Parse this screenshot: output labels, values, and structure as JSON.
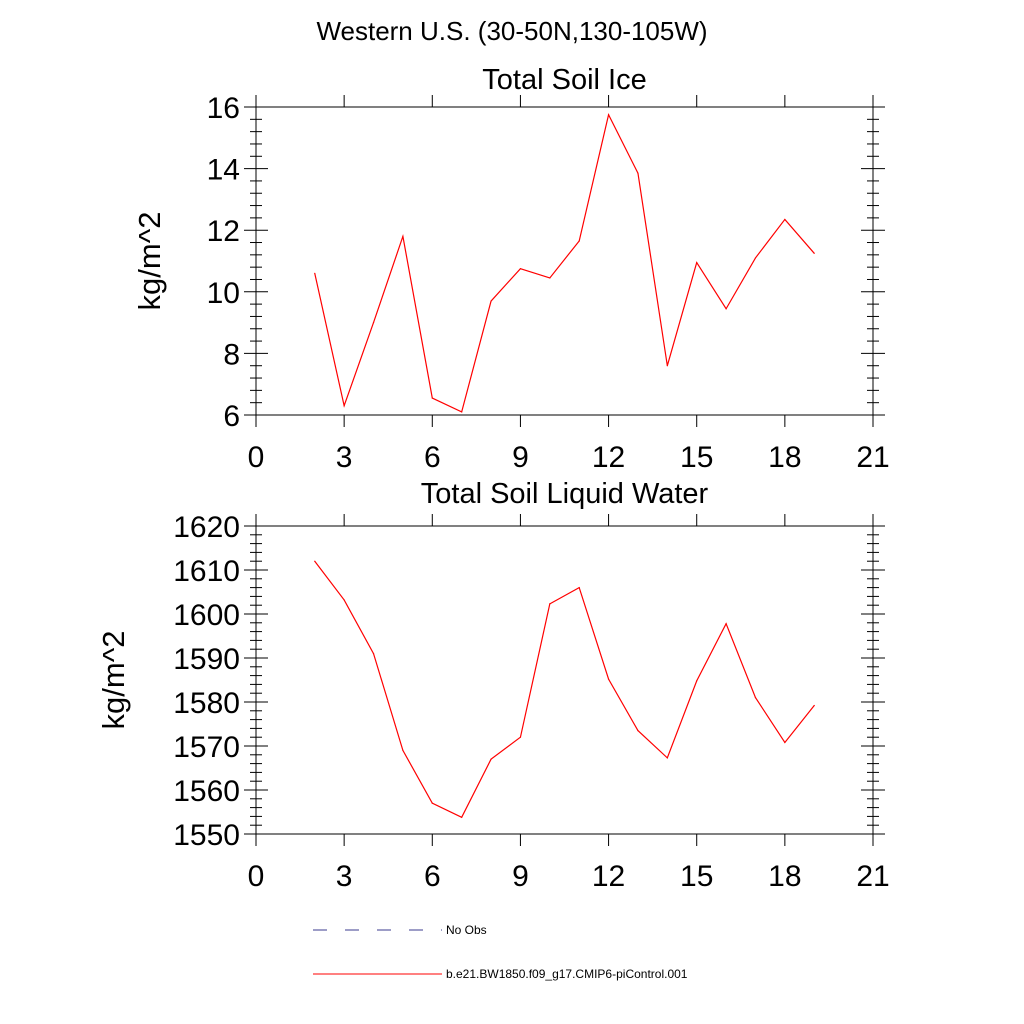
{
  "suptitle": "Western U.S. (30-50N,130-105W)",
  "colors": {
    "model": "#ff0000",
    "obs": "#3b3b8f",
    "axis": "#000000"
  },
  "chart_data": [
    {
      "type": "line",
      "title": "Total Soil Ice",
      "xlabel": "",
      "ylabel": "kg/m^2",
      "xlim": [
        0,
        21
      ],
      "ylim": [
        6,
        16
      ],
      "xticks": [
        0,
        3,
        6,
        9,
        12,
        15,
        18,
        21
      ],
      "yticks": [
        6,
        8,
        10,
        12,
        14,
        16
      ],
      "x": [
        2,
        3,
        4,
        5,
        6,
        7,
        8,
        9,
        10,
        11,
        12,
        13,
        14,
        15,
        16,
        17,
        18,
        19
      ],
      "series": [
        {
          "name": "b.e21.BW1850.f09_g17.CMIP6-piControl.001",
          "values": [
            10.6,
            6.3,
            9.0,
            11.8,
            6.55,
            6.1,
            9.7,
            10.75,
            10.45,
            11.65,
            15.75,
            13.85,
            7.6,
            10.95,
            9.45,
            11.1,
            12.35,
            11.25
          ]
        }
      ]
    },
    {
      "type": "line",
      "title": "Total Soil Liquid Water",
      "xlabel": "",
      "ylabel": "kg/m^2",
      "xlim": [
        0,
        21
      ],
      "ylim": [
        1550,
        1620
      ],
      "xticks": [
        0,
        3,
        6,
        9,
        12,
        15,
        18,
        21
      ],
      "yticks": [
        1550,
        1560,
        1570,
        1580,
        1590,
        1600,
        1610,
        1620
      ],
      "x": [
        2,
        3,
        4,
        5,
        6,
        7,
        8,
        9,
        10,
        11,
        12,
        13,
        14,
        15,
        16,
        17,
        18,
        19
      ],
      "series": [
        {
          "name": "b.e21.BW1850.f09_g17.CMIP6-piControl.001",
          "values": [
            1612,
            1603.2,
            1591,
            1569,
            1557,
            1553.8,
            1567,
            1572,
            1602.3,
            1606,
            1585.2,
            1573.5,
            1567.3,
            1584.8,
            1597.8,
            1581,
            1570.8,
            1579.2
          ]
        }
      ]
    }
  ],
  "legend": [
    {
      "label": "No Obs",
      "style": "dashed",
      "color": "#3b3b8f"
    },
    {
      "label": "b.e21.BW1850.f09_g17.CMIP6-piControl.001",
      "style": "solid",
      "color": "#ff0000"
    }
  ]
}
